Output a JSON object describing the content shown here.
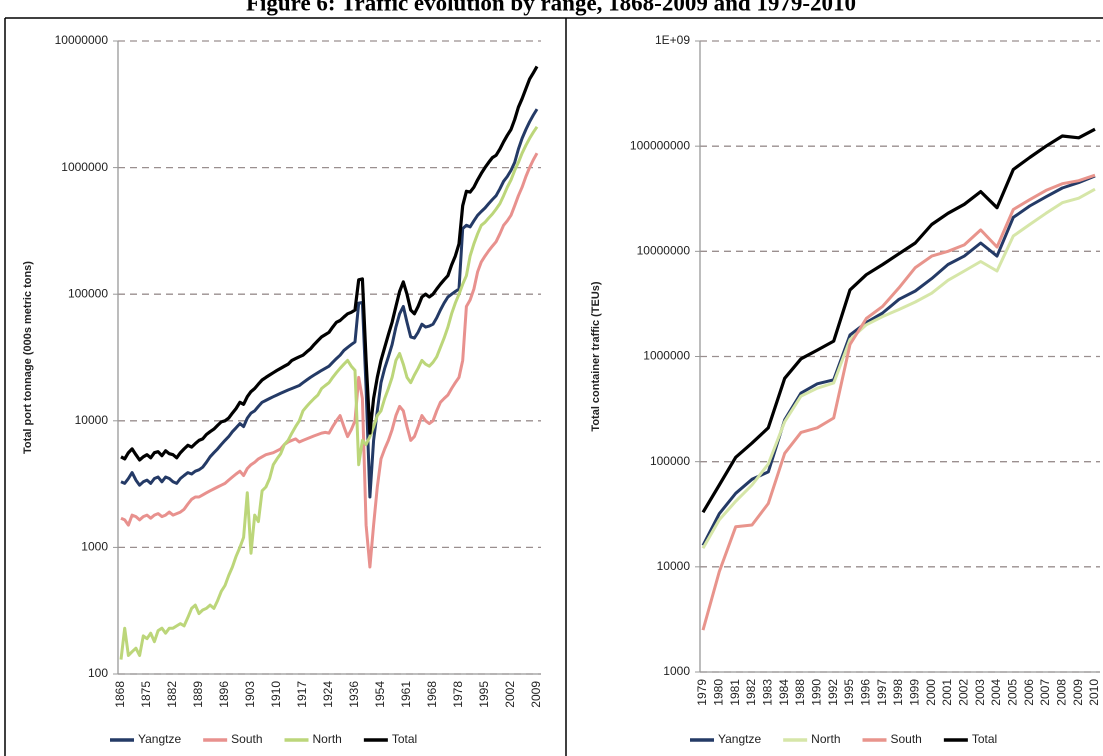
{
  "title": "Figure 6: Traffic evolution by range, 1868-2009 and 1979-2010",
  "chart_data": [
    {
      "type": "line",
      "log": true,
      "grid": true,
      "legend": "bottom",
      "y_label": "Total port tonnage (000s metric tons)",
      "ylim": [
        100,
        10000000
      ],
      "yticks": [
        100,
        1000,
        10000,
        100000,
        1000000,
        10000000
      ],
      "categories": [
        "1868",
        null,
        null,
        null,
        null,
        null,
        null,
        "1875",
        null,
        null,
        null,
        null,
        null,
        null,
        "1882",
        null,
        null,
        null,
        null,
        null,
        null,
        "1889",
        null,
        null,
        null,
        null,
        null,
        null,
        "1896",
        null,
        null,
        null,
        null,
        null,
        null,
        "1903",
        null,
        null,
        null,
        null,
        null,
        null,
        "1910",
        null,
        null,
        null,
        null,
        null,
        null,
        "1917",
        null,
        null,
        null,
        null,
        null,
        null,
        "1924",
        null,
        null,
        null,
        null,
        null,
        null,
        "1936",
        null,
        null,
        null,
        null,
        null,
        null,
        "1954",
        null,
        null,
        null,
        null,
        null,
        null,
        "1961",
        null,
        null,
        null,
        null,
        null,
        null,
        "1968",
        null,
        null,
        null,
        null,
        null,
        null,
        "1978",
        null,
        null,
        null,
        null,
        null,
        null,
        "1995",
        null,
        null,
        null,
        null,
        null,
        null,
        "2002",
        null,
        null,
        null,
        null,
        null,
        null,
        "2009"
      ],
      "series": [
        {
          "name": "Yangtze",
          "color": "#243a66",
          "values": [
            3300,
            3200,
            3500,
            3900,
            3400,
            3100,
            3300,
            3400,
            3200,
            3500,
            3600,
            3300,
            3600,
            3500,
            3300,
            3200,
            3500,
            3700,
            3900,
            3800,
            4000,
            4100,
            4300,
            4700,
            5200,
            5600,
            6000,
            6500,
            7000,
            7500,
            8200,
            8800,
            9500,
            9000,
            10500,
            11500,
            12000,
            13000,
            14000,
            14500,
            15000,
            15500,
            16000,
            16500,
            17000,
            17500,
            18000,
            18500,
            19000,
            20000,
            21000,
            22000,
            23000,
            24000,
            25000,
            26000,
            27000,
            29000,
            31000,
            33000,
            36000,
            38000,
            40000,
            42000,
            85000,
            86000,
            18000,
            2500,
            7000,
            12000,
            20000,
            26000,
            32000,
            40000,
            55000,
            70000,
            80000,
            60000,
            46000,
            45000,
            50000,
            58000,
            55000,
            56000,
            58000,
            65000,
            75000,
            85000,
            95000,
            100000,
            105000,
            110000,
            330000,
            350000,
            340000,
            380000,
            420000,
            450000,
            480000,
            520000,
            560000,
            600000,
            680000,
            780000,
            850000,
            950000,
            1100000,
            1400000,
            1700000,
            2000000,
            2300000,
            2600000,
            2900000
          ]
        },
        {
          "name": "South",
          "color": "#e8918e",
          "values": [
            1700,
            1650,
            1500,
            1800,
            1750,
            1650,
            1750,
            1800,
            1700,
            1800,
            1850,
            1750,
            1800,
            1900,
            1800,
            1850,
            1900,
            2000,
            2200,
            2400,
            2500,
            2500,
            2600,
            2700,
            2800,
            2900,
            3000,
            3100,
            3200,
            3400,
            3600,
            3800,
            4000,
            3700,
            4200,
            4500,
            4700,
            5000,
            5200,
            5400,
            5500,
            5600,
            5800,
            6000,
            6500,
            6800,
            7000,
            7200,
            6800,
            7000,
            7200,
            7400,
            7600,
            7800,
            8000,
            8100,
            8000,
            9000,
            10000,
            11000,
            9000,
            7500,
            8500,
            10000,
            22000,
            15000,
            1500,
            700,
            1500,
            3000,
            5000,
            6000,
            7000,
            8500,
            11000,
            13000,
            12000,
            9000,
            7000,
            7500,
            9000,
            11000,
            10000,
            9500,
            10000,
            12000,
            14000,
            15000,
            16000,
            18000,
            20000,
            22000,
            30000,
            80000,
            90000,
            110000,
            150000,
            180000,
            200000,
            220000,
            240000,
            260000,
            300000,
            350000,
            380000,
            420000,
            500000,
            600000,
            700000,
            850000,
            1000000,
            1150000,
            1300000
          ]
        },
        {
          "name": "North",
          "color": "#bcd67a",
          "values": [
            130,
            230,
            140,
            150,
            160,
            140,
            200,
            190,
            210,
            180,
            220,
            230,
            210,
            230,
            230,
            240,
            250,
            240,
            280,
            330,
            350,
            300,
            320,
            330,
            350,
            330,
            380,
            450,
            500,
            600,
            700,
            850,
            1000,
            1200,
            2700,
            900,
            1800,
            1600,
            2800,
            3000,
            3500,
            4500,
            5000,
            5500,
            6500,
            7000,
            8000,
            9000,
            10000,
            12000,
            13000,
            14000,
            15000,
            16000,
            18000,
            19000,
            20000,
            22000,
            24000,
            26000,
            28000,
            30000,
            27000,
            25000,
            4500,
            7000,
            6500,
            7500,
            9000,
            11000,
            12000,
            15000,
            18000,
            22000,
            30000,
            34000,
            28000,
            22000,
            20000,
            23000,
            26000,
            30000,
            28000,
            27000,
            29000,
            32000,
            38000,
            45000,
            55000,
            70000,
            85000,
            100000,
            120000,
            140000,
            200000,
            250000,
            300000,
            350000,
            370000,
            400000,
            430000,
            470000,
            520000,
            600000,
            700000,
            800000,
            950000,
            1100000,
            1300000,
            1500000,
            1700000,
            1900000,
            2100000
          ]
        },
        {
          "name": "Total",
          "color": "#000000",
          "values": [
            5200,
            5000,
            5600,
            6000,
            5400,
            4900,
            5200,
            5400,
            5100,
            5600,
            5700,
            5300,
            5800,
            5500,
            5400,
            5100,
            5600,
            6000,
            6400,
            6200,
            6600,
            7000,
            7200,
            7800,
            8200,
            8600,
            9200,
            9800,
            10000,
            10500,
            11500,
            12500,
            14000,
            13500,
            15500,
            17000,
            18000,
            19500,
            21000,
            22000,
            23000,
            24000,
            25000,
            26000,
            27000,
            28000,
            30000,
            31000,
            32000,
            33000,
            35000,
            37000,
            40000,
            43000,
            46000,
            48000,
            50000,
            55000,
            60000,
            62000,
            66000,
            70000,
            72000,
            75000,
            130000,
            132000,
            30000,
            8000,
            15000,
            22000,
            30000,
            38000,
            48000,
            60000,
            80000,
            105000,
            125000,
            100000,
            75000,
            70000,
            80000,
            95000,
            100000,
            95000,
            100000,
            110000,
            120000,
            130000,
            140000,
            170000,
            200000,
            250000,
            500000,
            650000,
            640000,
            700000,
            800000,
            900000,
            1000000,
            1100000,
            1200000,
            1250000,
            1400000,
            1600000,
            1800000,
            2000000,
            2400000,
            3000000,
            3500000,
            4200000,
            5000000,
            5600000,
            6300000
          ]
        }
      ]
    },
    {
      "type": "line",
      "log": true,
      "grid": true,
      "legend": "bottom",
      "y_label": "Total container traffic (TEUs)",
      "ylim": [
        1000,
        1000000000
      ],
      "yticks": [
        1000,
        10000,
        100000,
        1000000,
        10000000,
        100000000,
        {
          "value": 1000000000,
          "label": "1E+09"
        }
      ],
      "categories": [
        "1979",
        "1980",
        "1981",
        "1982",
        "1983",
        "1984",
        "1988",
        "1990",
        "1992",
        "1995",
        "1996",
        "1997",
        "1998",
        "1999",
        "2000",
        "2001",
        "2002",
        "2003",
        "2004",
        "2005",
        "2006",
        "2007",
        "2008",
        "2009",
        "2010"
      ],
      "series": [
        {
          "name": "Yangtze",
          "color": "#243a66",
          "values": [
            16000,
            32000,
            50000,
            68000,
            80000,
            250000,
            450000,
            550000,
            600000,
            1600000,
            2100000,
            2600000,
            3500000,
            4200000,
            5500000,
            7500000,
            9000000,
            12000000,
            9000000,
            21000000,
            27000000,
            33000000,
            40000000,
            45000000,
            52000000
          ]
        },
        {
          "name": "North",
          "color": "#d6e6a8",
          "values": [
            15000,
            28000,
            42000,
            60000,
            95000,
            240000,
            420000,
            500000,
            560000,
            1450000,
            2000000,
            2400000,
            2800000,
            3300000,
            4000000,
            5300000,
            6500000,
            8000000,
            6500000,
            14000000,
            18000000,
            23000000,
            29000000,
            32000000,
            39000000
          ]
        },
        {
          "name": "South",
          "color": "#e8948c",
          "values": [
            2500,
            9000,
            24000,
            25000,
            40000,
            120000,
            190000,
            210000,
            260000,
            1300000,
            2300000,
            3000000,
            4500000,
            7000000,
            9000000,
            10000000,
            11500000,
            16000000,
            11000000,
            25000000,
            31000000,
            38000000,
            44000000,
            47000000,
            53000000
          ]
        },
        {
          "name": "Total",
          "color": "#000000",
          "values": [
            33000,
            60000,
            110000,
            150000,
            210000,
            620000,
            950000,
            1150000,
            1400000,
            4300000,
            6000000,
            7500000,
            9500000,
            12000000,
            18000000,
            23000000,
            28000000,
            37000000,
            26000000,
            60000000,
            78000000,
            100000000,
            125000000,
            120000000,
            145000000
          ]
        }
      ]
    }
  ]
}
